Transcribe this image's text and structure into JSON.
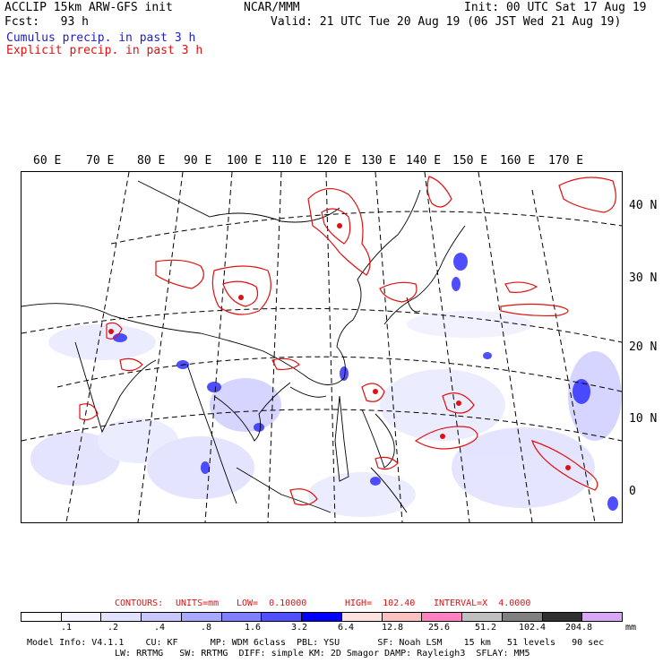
{
  "header": {
    "title_left": "ACCLIP 15km ARW-GFS init",
    "org": "NCAR/MMM",
    "init": "Init: 00 UTC Sat 17 Aug 19",
    "fcst": "Fcst:   93 h",
    "valid": "Valid: 21 UTC Tue 20 Aug 19 (06 JST Wed 21 Aug 19)",
    "cumulus_label": "Cumulus precip. in past 3 h",
    "explicit_label": "Explicit precip. in past 3 h"
  },
  "colors": {
    "cumulus": "#2020c0",
    "explicit": "#e01010",
    "shading": [
      "#ffffff",
      "#f4f4ff",
      "#e2e2ff",
      "#c8c8ff",
      "#a8a8ff",
      "#8080ff",
      "#5050ff",
      "#0000ff",
      "#ffe0e0",
      "#ffc0c0",
      "#ff80c0",
      "#c0c0c0",
      "#808080",
      "#303030",
      "#d8a8f8"
    ]
  },
  "map": {
    "lon_labels": [
      "60 E",
      "70 E",
      "80 E",
      "90 E",
      "100 E",
      "110 E",
      "120 E",
      "130 E",
      "140 E",
      "150 E",
      "160 E",
      "170 E"
    ],
    "lat_labels": [
      "40 N",
      "30 N",
      "20 N",
      "10 N",
      "0"
    ]
  },
  "contours": {
    "label": "CONTOURS:",
    "units": "UNITS=mm",
    "low": "LOW=  0.10000",
    "high": "HIGH=  102.40",
    "interval": "INTERVAL=X  4.0000"
  },
  "legend": {
    "labels": [
      ".1",
      ".2",
      ".4",
      ".8",
      "1.6",
      "3.2",
      "6.4",
      "12.8",
      "25.6",
      "51.2",
      "102.4",
      "204.8"
    ],
    "unit": "mm"
  },
  "footer": {
    "line1": "Model Info: V4.1.1    CU: KF      MP: WDM 6class  PBL: YSU       SF: Noah LSM    15 km   51 levels   90 sec",
    "line2": "LW: RRTMG   SW: RRTMG  DIFF: simple KM: 2D Smagor DAMP: Rayleigh3  SFLAY: MM5"
  }
}
